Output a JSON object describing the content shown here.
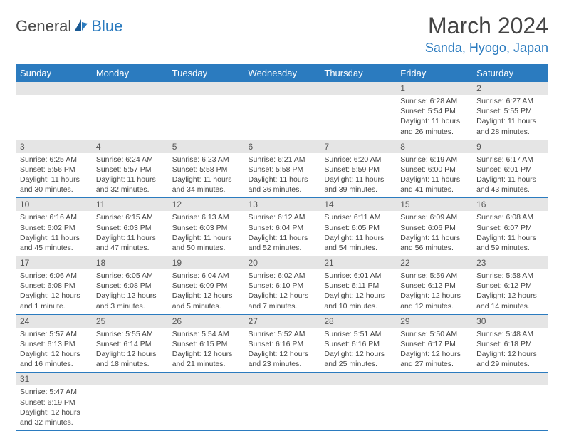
{
  "logo": {
    "text1": "General",
    "text2": "Blue"
  },
  "title": "March 2024",
  "location": "Sanda, Hyogo, Japan",
  "colors": {
    "header_bg": "#2b7bbf",
    "header_text": "#ffffff",
    "daynum_bg": "#e5e5e5",
    "border": "#2b7bbf",
    "title_color": "#444444",
    "location_color": "#2b7bbf"
  },
  "weekdays": [
    "Sunday",
    "Monday",
    "Tuesday",
    "Wednesday",
    "Thursday",
    "Friday",
    "Saturday"
  ],
  "weeks": [
    [
      null,
      null,
      null,
      null,
      null,
      {
        "n": "1",
        "sunrise": "6:28 AM",
        "sunset": "5:54 PM",
        "daylight": "11 hours and 26 minutes."
      },
      {
        "n": "2",
        "sunrise": "6:27 AM",
        "sunset": "5:55 PM",
        "daylight": "11 hours and 28 minutes."
      }
    ],
    [
      {
        "n": "3",
        "sunrise": "6:25 AM",
        "sunset": "5:56 PM",
        "daylight": "11 hours and 30 minutes."
      },
      {
        "n": "4",
        "sunrise": "6:24 AM",
        "sunset": "5:57 PM",
        "daylight": "11 hours and 32 minutes."
      },
      {
        "n": "5",
        "sunrise": "6:23 AM",
        "sunset": "5:58 PM",
        "daylight": "11 hours and 34 minutes."
      },
      {
        "n": "6",
        "sunrise": "6:21 AM",
        "sunset": "5:58 PM",
        "daylight": "11 hours and 36 minutes."
      },
      {
        "n": "7",
        "sunrise": "6:20 AM",
        "sunset": "5:59 PM",
        "daylight": "11 hours and 39 minutes."
      },
      {
        "n": "8",
        "sunrise": "6:19 AM",
        "sunset": "6:00 PM",
        "daylight": "11 hours and 41 minutes."
      },
      {
        "n": "9",
        "sunrise": "6:17 AM",
        "sunset": "6:01 PM",
        "daylight": "11 hours and 43 minutes."
      }
    ],
    [
      {
        "n": "10",
        "sunrise": "6:16 AM",
        "sunset": "6:02 PM",
        "daylight": "11 hours and 45 minutes."
      },
      {
        "n": "11",
        "sunrise": "6:15 AM",
        "sunset": "6:03 PM",
        "daylight": "11 hours and 47 minutes."
      },
      {
        "n": "12",
        "sunrise": "6:13 AM",
        "sunset": "6:03 PM",
        "daylight": "11 hours and 50 minutes."
      },
      {
        "n": "13",
        "sunrise": "6:12 AM",
        "sunset": "6:04 PM",
        "daylight": "11 hours and 52 minutes."
      },
      {
        "n": "14",
        "sunrise": "6:11 AM",
        "sunset": "6:05 PM",
        "daylight": "11 hours and 54 minutes."
      },
      {
        "n": "15",
        "sunrise": "6:09 AM",
        "sunset": "6:06 PM",
        "daylight": "11 hours and 56 minutes."
      },
      {
        "n": "16",
        "sunrise": "6:08 AM",
        "sunset": "6:07 PM",
        "daylight": "11 hours and 59 minutes."
      }
    ],
    [
      {
        "n": "17",
        "sunrise": "6:06 AM",
        "sunset": "6:08 PM",
        "daylight": "12 hours and 1 minute."
      },
      {
        "n": "18",
        "sunrise": "6:05 AM",
        "sunset": "6:08 PM",
        "daylight": "12 hours and 3 minutes."
      },
      {
        "n": "19",
        "sunrise": "6:04 AM",
        "sunset": "6:09 PM",
        "daylight": "12 hours and 5 minutes."
      },
      {
        "n": "20",
        "sunrise": "6:02 AM",
        "sunset": "6:10 PM",
        "daylight": "12 hours and 7 minutes."
      },
      {
        "n": "21",
        "sunrise": "6:01 AM",
        "sunset": "6:11 PM",
        "daylight": "12 hours and 10 minutes."
      },
      {
        "n": "22",
        "sunrise": "5:59 AM",
        "sunset": "6:12 PM",
        "daylight": "12 hours and 12 minutes."
      },
      {
        "n": "23",
        "sunrise": "5:58 AM",
        "sunset": "6:12 PM",
        "daylight": "12 hours and 14 minutes."
      }
    ],
    [
      {
        "n": "24",
        "sunrise": "5:57 AM",
        "sunset": "6:13 PM",
        "daylight": "12 hours and 16 minutes."
      },
      {
        "n": "25",
        "sunrise": "5:55 AM",
        "sunset": "6:14 PM",
        "daylight": "12 hours and 18 minutes."
      },
      {
        "n": "26",
        "sunrise": "5:54 AM",
        "sunset": "6:15 PM",
        "daylight": "12 hours and 21 minutes."
      },
      {
        "n": "27",
        "sunrise": "5:52 AM",
        "sunset": "6:16 PM",
        "daylight": "12 hours and 23 minutes."
      },
      {
        "n": "28",
        "sunrise": "5:51 AM",
        "sunset": "6:16 PM",
        "daylight": "12 hours and 25 minutes."
      },
      {
        "n": "29",
        "sunrise": "5:50 AM",
        "sunset": "6:17 PM",
        "daylight": "12 hours and 27 minutes."
      },
      {
        "n": "30",
        "sunrise": "5:48 AM",
        "sunset": "6:18 PM",
        "daylight": "12 hours and 29 minutes."
      }
    ],
    [
      {
        "n": "31",
        "sunrise": "5:47 AM",
        "sunset": "6:19 PM",
        "daylight": "12 hours and 32 minutes."
      },
      null,
      null,
      null,
      null,
      null,
      null
    ]
  ],
  "labels": {
    "sunrise": "Sunrise:",
    "sunset": "Sunset:",
    "daylight": "Daylight:"
  }
}
